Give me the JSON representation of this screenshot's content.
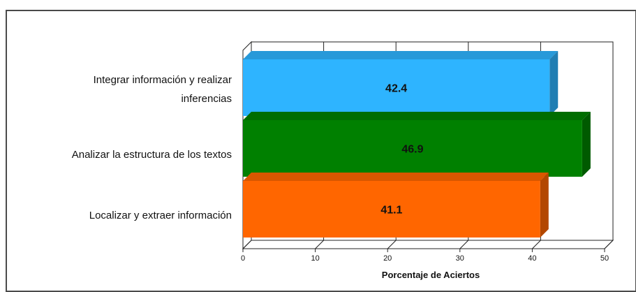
{
  "chart_data": {
    "type": "bar",
    "orientation": "horizontal",
    "categories": [
      "Integrar información y realizar inferencias",
      "Analizar la estructura de los textos",
      "Localizar y extraer información"
    ],
    "label_lines": [
      [
        "Integrar información y realizar",
        "inferencias"
      ],
      [
        "Analizar la estructura de los textos"
      ],
      [
        "Localizar y extraer información"
      ]
    ],
    "values": [
      42.4,
      46.9,
      41.1
    ],
    "value_labels": [
      "42.4",
      "46.9",
      "41.1"
    ],
    "colors": [
      "#2eb4ff",
      "#008000",
      "#ff6600"
    ],
    "xlabel": "Porcentaje de Aciertos",
    "ylabel": "",
    "title": "",
    "xlim": [
      0,
      50
    ],
    "xticks": [
      0,
      10,
      20,
      30,
      40,
      50
    ],
    "tick_labels": [
      "0",
      "10",
      "20",
      "30",
      "40",
      "50"
    ],
    "grid": "vertical",
    "style": "3d"
  }
}
